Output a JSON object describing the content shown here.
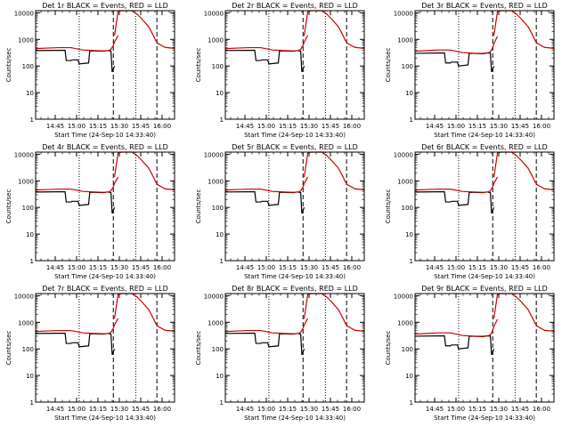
{
  "chart_data": [
    {
      "type": "line",
      "title": "Det 1r BLACK = Events, RED = LLD",
      "xlabel": "Start Time (24-Sep-10 14:33:40)",
      "ylabel": "Counts/sec",
      "xticks": [
        "14:45",
        "15:00",
        "15:15",
        "15:30",
        "15:45",
        "16:00"
      ],
      "yticks": [
        "1",
        "10",
        "100",
        "1000",
        "10000"
      ],
      "xlim": [
        0,
        118
      ],
      "ylim": [
        1,
        12000
      ],
      "yscale": "log",
      "dotted_lines_x": [
        37,
        85
      ],
      "dashed_lines_x": [
        66,
        103
      ],
      "series": [
        {
          "color": "#000000",
          "x": [
            0,
            25,
            26,
            30,
            31,
            36,
            37,
            45,
            46,
            58,
            61,
            64,
            65,
            67
          ],
          "y": [
            380,
            390,
            160,
            160,
            170,
            170,
            120,
            130,
            370,
            360,
            380,
            360,
            60,
            100
          ]
        },
        {
          "color": "#cc0000",
          "x": [
            0,
            10,
            20,
            30,
            40,
            45,
            50,
            58,
            62,
            64,
            66,
            67,
            70
          ],
          "y": [
            450,
            470,
            490,
            490,
            400,
            390,
            380,
            370,
            380,
            420,
            600,
            800,
            1400
          ]
        }
      ]
    },
    {
      "type": "line",
      "title": "Det 2r BLACK = Events, RED = LLD",
      "xlabel": "Start Time (24-Sep-10 14:33:40)",
      "ylabel": "Counts/sec",
      "xticks": [
        "14:45",
        "15:00",
        "15:15",
        "15:30",
        "15:45",
        "16:00"
      ],
      "yticks": [
        "1",
        "10",
        "100",
        "1000",
        "10000"
      ],
      "xlim": [
        0,
        118
      ],
      "ylim": [
        1,
        12000
      ],
      "yscale": "log",
      "dotted_lines_x": [
        37,
        85
      ],
      "dashed_lines_x": [
        66,
        103
      ],
      "series": [
        {
          "color": "#000000",
          "x": [
            0,
            25,
            26,
            30,
            31,
            36,
            37,
            45,
            46,
            58,
            61,
            64,
            65,
            67
          ],
          "y": [
            380,
            390,
            160,
            160,
            170,
            170,
            120,
            130,
            370,
            360,
            380,
            360,
            60,
            100
          ]
        },
        {
          "color": "#cc0000",
          "x": [
            0,
            10,
            20,
            30,
            40,
            45,
            50,
            58,
            62,
            64,
            66,
            67,
            70
          ],
          "y": [
            450,
            470,
            490,
            490,
            400,
            390,
            380,
            370,
            380,
            420,
            600,
            800,
            1400
          ]
        }
      ]
    },
    {
      "type": "line",
      "title": "Det 3r BLACK = Events, RED = LLD",
      "xlabel": "Start Time (24-Sep-10 14:33:40)",
      "ylabel": "Counts/sec",
      "xticks": [
        "14:45",
        "15:00",
        "15:15",
        "15:30",
        "15:45",
        "16:00"
      ],
      "yticks": [
        "1",
        "10",
        "100",
        "1000",
        "10000"
      ],
      "xlim": [
        0,
        118
      ],
      "ylim": [
        1,
        12000
      ],
      "yscale": "log",
      "dotted_lines_x": [
        37,
        85
      ],
      "dashed_lines_x": [
        66,
        103
      ],
      "series": [
        {
          "color": "#000000",
          "x": [
            0,
            25,
            26,
            30,
            31,
            36,
            37,
            45,
            46,
            58,
            61,
            64,
            65,
            67
          ],
          "y": [
            300,
            310,
            130,
            130,
            140,
            140,
            100,
            110,
            300,
            290,
            310,
            300,
            60,
            100
          ]
        },
        {
          "color": "#cc0000",
          "x": [
            0,
            10,
            20,
            30,
            40,
            45,
            50,
            58,
            62,
            64,
            66,
            67,
            70
          ],
          "y": [
            360,
            380,
            400,
            400,
            320,
            310,
            300,
            300,
            310,
            340,
            500,
            700,
            1300
          ]
        }
      ]
    },
    {
      "type": "line",
      "title": "Det 4r BLACK = Events, RED = LLD",
      "xlabel": "Start Time (24-Sep-10 14:33:40)",
      "ylabel": "Counts/sec",
      "xticks": [
        "14:45",
        "15:00",
        "15:15",
        "15:30",
        "15:45",
        "16:00"
      ],
      "yticks": [
        "1",
        "10",
        "100",
        "1000",
        "10000"
      ],
      "xlim": [
        0,
        118
      ],
      "ylim": [
        1,
        12000
      ],
      "yscale": "log",
      "dotted_lines_x": [
        37,
        85
      ],
      "dashed_lines_x": [
        66,
        103
      ],
      "series": [
        {
          "color": "#000000",
          "x": [
            0,
            25,
            26,
            30,
            31,
            36,
            37,
            45,
            46,
            58,
            61,
            64,
            65,
            67
          ],
          "y": [
            380,
            390,
            160,
            160,
            170,
            170,
            120,
            130,
            370,
            360,
            380,
            360,
            60,
            100
          ]
        },
        {
          "color": "#cc0000",
          "x": [
            0,
            10,
            20,
            30,
            40,
            45,
            50,
            58,
            62,
            64,
            66,
            67,
            70
          ],
          "y": [
            450,
            470,
            490,
            490,
            400,
            390,
            380,
            370,
            380,
            420,
            600,
            800,
            1400
          ]
        }
      ]
    },
    {
      "type": "line",
      "title": "Det 5r BLACK = Events, RED = LLD",
      "xlabel": "Start Time (24-Sep-10 14:33:40)",
      "ylabel": "Counts/sec",
      "xticks": [
        "14:45",
        "15:00",
        "15:15",
        "15:30",
        "15:45",
        "16:00"
      ],
      "yticks": [
        "1",
        "10",
        "100",
        "1000",
        "10000"
      ],
      "xlim": [
        0,
        118
      ],
      "ylim": [
        1,
        12000
      ],
      "yscale": "log",
      "dotted_lines_x": [
        37,
        85
      ],
      "dashed_lines_x": [
        66,
        103
      ],
      "series": [
        {
          "color": "#000000",
          "x": [
            0,
            25,
            26,
            30,
            31,
            36,
            37,
            45,
            46,
            58,
            61,
            64,
            65,
            67
          ],
          "y": [
            380,
            390,
            160,
            160,
            170,
            170,
            120,
            130,
            370,
            360,
            380,
            360,
            60,
            100
          ]
        },
        {
          "color": "#cc0000",
          "x": [
            0,
            10,
            20,
            30,
            40,
            45,
            50,
            58,
            62,
            64,
            66,
            67,
            70
          ],
          "y": [
            450,
            470,
            490,
            490,
            400,
            390,
            380,
            370,
            380,
            420,
            600,
            800,
            1400
          ]
        }
      ]
    },
    {
      "type": "line",
      "title": "Det 6r BLACK = Events, RED = LLD",
      "xlabel": "Start Time (24-Sep-10 14:33:40)",
      "ylabel": "Counts/sec",
      "xticks": [
        "14:45",
        "15:00",
        "15:15",
        "15:30",
        "15:45",
        "16:00"
      ],
      "yticks": [
        "1",
        "10",
        "100",
        "1000",
        "10000"
      ],
      "xlim": [
        0,
        118
      ],
      "ylim": [
        1,
        12000
      ],
      "yscale": "log",
      "dotted_lines_x": [
        37,
        85
      ],
      "dashed_lines_x": [
        66,
        103
      ],
      "series": [
        {
          "color": "#000000",
          "x": [
            0,
            25,
            26,
            30,
            31,
            36,
            37,
            45,
            46,
            58,
            61,
            64,
            65,
            67
          ],
          "y": [
            380,
            390,
            160,
            160,
            170,
            170,
            120,
            130,
            370,
            360,
            380,
            360,
            60,
            100
          ]
        },
        {
          "color": "#cc0000",
          "x": [
            0,
            10,
            20,
            30,
            40,
            45,
            50,
            58,
            62,
            64,
            66,
            67,
            70
          ],
          "y": [
            450,
            470,
            490,
            490,
            400,
            390,
            380,
            370,
            380,
            420,
            600,
            800,
            1400
          ]
        }
      ]
    },
    {
      "type": "line",
      "title": "Det 7r BLACK = Events, RED = LLD",
      "xlabel": "Start Time (24-Sep-10 14:33:40)",
      "ylabel": "Counts/sec",
      "xticks": [
        "14:45",
        "15:00",
        "15:15",
        "15:30",
        "15:45",
        "16:00"
      ],
      "yticks": [
        "1",
        "10",
        "100",
        "1000",
        "10000"
      ],
      "xlim": [
        0,
        118
      ],
      "ylim": [
        1,
        12000
      ],
      "yscale": "log",
      "dotted_lines_x": [
        37,
        85
      ],
      "dashed_lines_x": [
        66,
        103
      ],
      "series": [
        {
          "color": "#000000",
          "x": [
            0,
            25,
            26,
            30,
            31,
            36,
            37,
            45,
            46,
            58,
            61,
            64,
            65,
            67
          ],
          "y": [
            380,
            390,
            160,
            160,
            170,
            170,
            120,
            130,
            370,
            360,
            380,
            360,
            60,
            100
          ]
        },
        {
          "color": "#cc0000",
          "x": [
            0,
            10,
            20,
            30,
            40,
            45,
            50,
            58,
            62,
            64,
            66,
            67,
            70
          ],
          "y": [
            450,
            470,
            490,
            490,
            400,
            390,
            380,
            370,
            380,
            420,
            600,
            800,
            1400
          ]
        }
      ]
    },
    {
      "type": "line",
      "title": "Det 8r BLACK = Events, RED = LLD",
      "xlabel": "Start Time (24-Sep-10 14:33:40)",
      "ylabel": "Counts/sec",
      "xticks": [
        "14:45",
        "15:00",
        "15:15",
        "15:30",
        "15:45",
        "16:00"
      ],
      "yticks": [
        "1",
        "10",
        "100",
        "1000",
        "10000"
      ],
      "xlim": [
        0,
        118
      ],
      "ylim": [
        1,
        12000
      ],
      "yscale": "log",
      "dotted_lines_x": [
        37,
        85
      ],
      "dashed_lines_x": [
        66,
        103
      ],
      "series": [
        {
          "color": "#000000",
          "x": [
            0,
            25,
            26,
            30,
            31,
            36,
            37,
            45,
            46,
            58,
            61,
            64,
            65,
            67
          ],
          "y": [
            380,
            390,
            160,
            160,
            170,
            170,
            120,
            130,
            370,
            360,
            380,
            360,
            60,
            100
          ]
        },
        {
          "color": "#cc0000",
          "x": [
            0,
            10,
            20,
            30,
            40,
            45,
            50,
            58,
            62,
            64,
            66,
            67,
            70
          ],
          "y": [
            450,
            470,
            490,
            490,
            400,
            390,
            380,
            370,
            380,
            420,
            600,
            800,
            1400
          ]
        }
      ]
    },
    {
      "type": "line",
      "title": "Det 9r BLACK = Events, RED = LLD",
      "xlabel": "Start Time (24-Sep-10 14:33:40)",
      "ylabel": "Counts/sec",
      "xticks": [
        "14:45",
        "15:00",
        "15:15",
        "15:30",
        "15:45",
        "16:00"
      ],
      "yticks": [
        "1",
        "10",
        "100",
        "1000",
        "10000"
      ],
      "xlim": [
        0,
        118
      ],
      "ylim": [
        1,
        12000
      ],
      "yscale": "log",
      "dotted_lines_x": [
        37,
        85
      ],
      "dashed_lines_x": [
        66,
        103
      ],
      "series": [
        {
          "color": "#000000",
          "x": [
            0,
            25,
            26,
            30,
            31,
            36,
            37,
            45,
            46,
            58,
            61,
            64,
            65,
            67
          ],
          "y": [
            300,
            310,
            130,
            130,
            140,
            140,
            100,
            110,
            300,
            290,
            310,
            300,
            60,
            100
          ]
        },
        {
          "color": "#cc0000",
          "x": [
            0,
            10,
            20,
            30,
            40,
            45,
            50,
            58,
            62,
            64,
            66,
            67,
            70
          ],
          "y": [
            360,
            380,
            400,
            400,
            320,
            310,
            300,
            300,
            310,
            340,
            500,
            700,
            1300
          ]
        }
      ]
    }
  ]
}
